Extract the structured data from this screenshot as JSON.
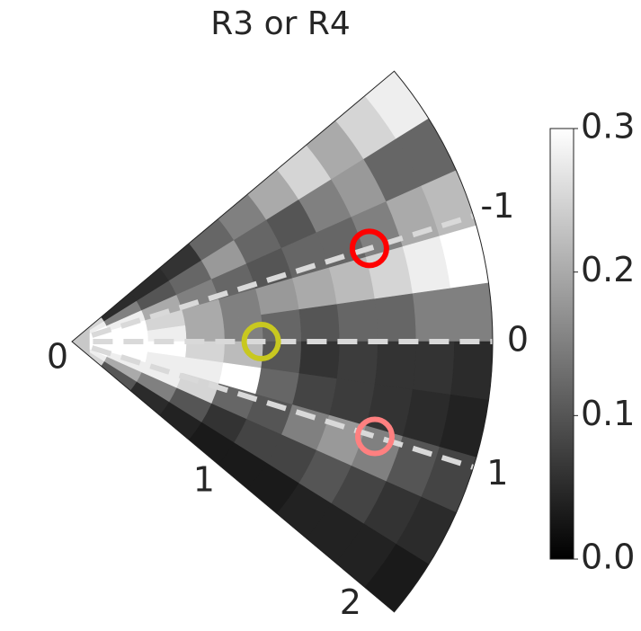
{
  "chart_data": {
    "type": "polar-heatmap",
    "title": "R3 or R4",
    "r_edges": [
      0,
      0.2,
      0.4,
      0.6,
      0.8,
      1.0,
      1.2,
      1.4,
      1.6,
      1.8,
      2.0,
      2.2
    ],
    "theta_edges": [
      -2.3,
      -1.84,
      -1.38,
      -0.92,
      -0.46,
      0,
      0.46,
      0.92,
      1.38,
      1.84,
      2.3
    ],
    "values": [
      [
        0.25,
        0.28,
        0.3,
        0.3,
        0.3,
        0.3,
        0.3,
        0.3,
        0.28,
        0.25
      ],
      [
        0.05,
        0.15,
        0.28,
        0.3,
        0.3,
        0.3,
        0.3,
        0.28,
        0.2,
        0.1
      ],
      [
        0.05,
        0.1,
        0.2,
        0.25,
        0.28,
        0.3,
        0.28,
        0.28,
        0.15,
        0.05
      ],
      [
        0.06,
        0.12,
        0.15,
        0.2,
        0.2,
        0.25,
        0.28,
        0.25,
        0.1,
        0.04
      ],
      [
        0.12,
        0.18,
        0.12,
        0.15,
        0.15,
        0.22,
        0.3,
        0.12,
        0.06,
        0.03
      ],
      [
        0.15,
        0.12,
        0.1,
        0.18,
        0.12,
        0.1,
        0.12,
        0.1,
        0.08,
        0.03
      ],
      [
        0.2,
        0.1,
        0.12,
        0.2,
        0.1,
        0.06,
        0.08,
        0.15,
        0.08,
        0.03
      ],
      [
        0.25,
        0.15,
        0.12,
        0.22,
        0.12,
        0.07,
        0.07,
        0.18,
        0.1,
        0.04
      ],
      [
        0.2,
        0.18,
        0.15,
        0.25,
        0.12,
        0.06,
        0.06,
        0.15,
        0.08,
        0.04
      ],
      [
        0.25,
        0.12,
        0.2,
        0.28,
        0.15,
        0.06,
        0.05,
        0.1,
        0.06,
        0.04
      ],
      [
        0.28,
        0.12,
        0.22,
        0.3,
        0.15,
        0.05,
        0.04,
        0.08,
        0.05,
        0.03
      ]
    ],
    "rlim": [
      0,
      2.2
    ],
    "rticks": [
      0,
      1,
      2
    ],
    "thetalim": [
      -2.3,
      2.3
    ],
    "thetaticks": [
      -1,
      0,
      1
    ],
    "clim": [
      0,
      0.3
    ],
    "cticks": [
      0.0,
      0.1,
      0.2,
      0.3
    ],
    "markers": [
      {
        "r": 1.63,
        "theta": -1,
        "color": "#ff0000"
      },
      {
        "r": 0.99,
        "theta": 0,
        "color": "#c8c820"
      },
      {
        "r": 1.66,
        "theta": 1,
        "color": "#ff8080"
      }
    ]
  }
}
